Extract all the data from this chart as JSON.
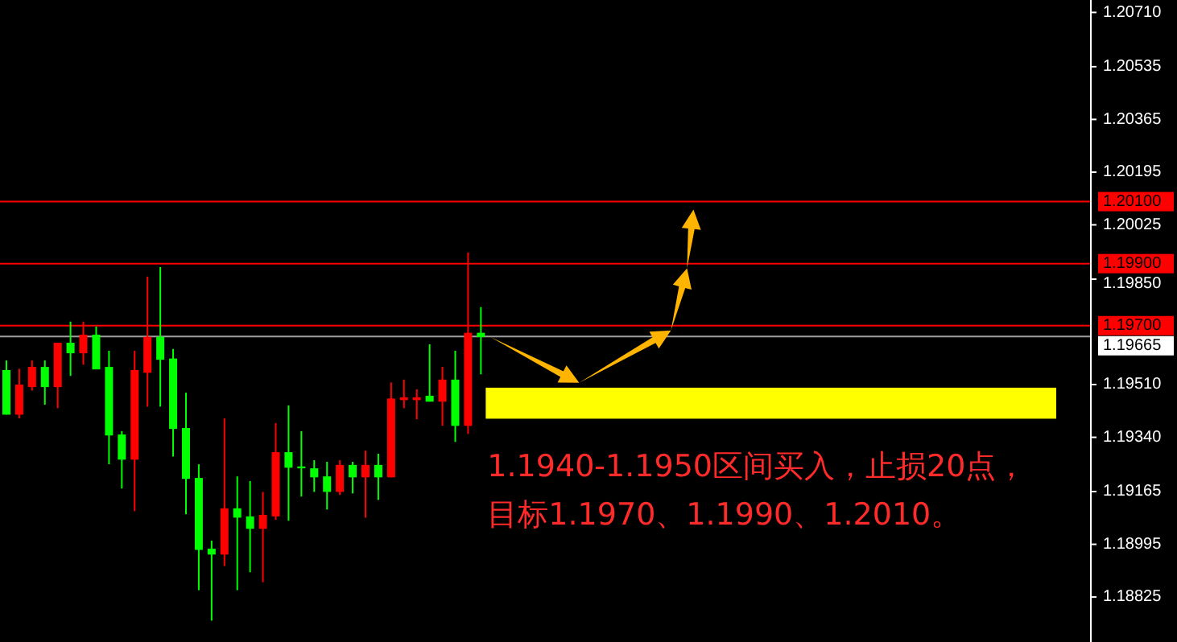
{
  "chart_data": {
    "type": "candlestick",
    "categories": [
      null,
      null,
      null,
      null,
      null,
      null,
      null,
      null,
      null,
      null,
      null,
      null,
      null,
      null,
      null,
      null,
      null,
      null,
      null,
      null,
      null,
      null,
      null,
      null,
      null,
      null,
      null,
      null,
      null,
      null,
      null,
      null,
      null,
      null,
      null,
      null,
      null,
      null,
      null,
      null,
      null,
      null,
      null,
      null,
      null,
      null,
      null,
      null,
      null,
      null,
      null,
      null,
      null,
      null,
      null,
      null,
      null,
      null,
      null,
      null,
      null,
      null,
      null,
      null,
      null,
      null,
      null,
      null,
      null,
      null,
      null,
      null,
      null,
      null,
      null,
      null,
      null,
      null,
      null,
      null,
      null,
      null,
      null,
      null,
      null
    ],
    "ohlc": [
      [
        1.19557,
        1.19588,
        1.19413,
        1.19413
      ],
      [
        1.19413,
        1.19561,
        1.19401,
        1.1951
      ],
      [
        1.19502,
        1.19588,
        1.19491,
        1.19567
      ],
      [
        1.19567,
        1.19588,
        1.19445,
        1.19502
      ],
      [
        1.19502,
        1.19645,
        1.19434,
        1.19645
      ],
      [
        1.19645,
        1.19713,
        1.19538,
        1.19611
      ],
      [
        1.19611,
        1.19713,
        1.19574,
        1.19671
      ],
      [
        1.19671,
        1.19697,
        1.19559,
        1.19559
      ],
      [
        1.19567,
        1.19619,
        1.19253,
        1.19346
      ],
      [
        1.19349,
        1.1936,
        1.19175,
        1.19268
      ],
      [
        1.19268,
        1.19619,
        1.19102,
        1.19557
      ],
      [
        1.19548,
        1.19858,
        1.19439,
        1.19664
      ],
      [
        1.19664,
        1.19889,
        1.19439,
        1.1959
      ],
      [
        1.19594,
        1.19625,
        1.19278,
        1.19367
      ],
      [
        1.1937,
        1.19484,
        1.19092,
        1.19206
      ],
      [
        1.19209,
        1.19253,
        1.18847,
        1.18977
      ],
      [
        1.18981,
        1.19007,
        1.18749,
        1.18962
      ],
      [
        1.18962,
        1.19401,
        1.18925,
        1.19111
      ],
      [
        1.19111,
        1.19214,
        1.18847,
        1.19081
      ],
      [
        1.19085,
        1.19199,
        1.18905,
        1.19045
      ],
      [
        1.19045,
        1.19164,
        1.18873,
        1.1909
      ],
      [
        1.19085,
        1.19386,
        1.19074,
        1.19292
      ],
      [
        1.19292,
        1.19443,
        1.19071,
        1.19242
      ],
      [
        1.19246,
        1.1936,
        1.19149,
        1.1924
      ],
      [
        1.1924,
        1.19266,
        1.19164,
        1.19211
      ],
      [
        1.19214,
        1.19261,
        1.19107,
        1.19164
      ],
      [
        1.19164,
        1.19266,
        1.19154,
        1.19251
      ],
      [
        1.19251,
        1.19261,
        1.19159,
        1.19211
      ],
      [
        1.19211,
        1.19297,
        1.19081,
        1.19251
      ],
      [
        1.19251,
        1.19287,
        1.19138,
        1.19211
      ],
      [
        1.19211,
        1.19517,
        1.19211,
        1.19465
      ],
      [
        1.1946,
        1.19526,
        1.19434,
        1.19469
      ],
      [
        1.1946,
        1.19495,
        1.19398,
        1.19469
      ],
      [
        1.19474,
        1.1964,
        1.19455,
        1.19455
      ],
      [
        1.19455,
        1.19567,
        1.19377,
        1.19526
      ],
      [
        1.19526,
        1.19619,
        1.19325,
        1.19377
      ],
      [
        1.19377,
        1.19936,
        1.19351,
        1.19677
      ],
      [
        1.19677,
        1.1976,
        1.19543,
        1.19663
      ],
      null,
      null,
      null,
      null,
      null,
      null,
      null,
      null,
      null,
      null,
      null,
      null,
      null,
      null,
      null,
      null,
      null,
      null,
      null,
      null,
      null,
      null,
      null,
      null,
      null,
      null,
      null,
      null,
      null,
      null,
      null,
      null,
      null,
      null,
      null,
      null,
      null,
      null,
      null,
      null,
      null,
      null,
      null,
      null,
      null,
      null,
      null
    ],
    "colors": [
      "#00ff00",
      "#ff0000",
      "#ff0000",
      "#00ff00",
      "#ff0000",
      "#00ff00",
      "#ff0000",
      "#00ff00",
      "#00ff00",
      "#00ff00",
      "#ff0000",
      "#ff0000",
      "#00ff00",
      "#00ff00",
      "#00ff00",
      "#00ff00",
      "#00ff00",
      "#ff0000",
      "#00ff00",
      "#00ff00",
      "#ff0000",
      "#ff0000",
      "#00ff00",
      "#00ff00",
      "#00ff00",
      "#00ff00",
      "#ff0000",
      "#00ff00",
      "#ff0000",
      "#00ff00",
      "#ff0000",
      "#ff0000",
      "#ff0000",
      "#00ff00",
      "#ff0000",
      "#00ff00",
      "#ff0000",
      "#00ff00",
      null,
      null,
      null,
      null,
      null,
      null,
      null,
      null,
      null,
      null,
      null,
      null,
      null,
      null,
      null,
      null,
      null,
      null,
      null,
      null,
      null,
      null,
      null,
      null,
      null,
      null,
      null,
      null,
      null,
      null,
      null,
      null,
      null,
      null,
      null,
      null,
      null,
      null,
      null,
      null,
      null,
      null,
      null,
      null,
      null,
      null,
      null
    ],
    "ylim": [
      1.1868,
      1.2075
    ],
    "yticks": [
      {
        "value": 1.2071,
        "label": "1.20710"
      },
      {
        "value": 1.20535,
        "label": "1.20535"
      },
      {
        "value": 1.20365,
        "label": "1.20365"
      },
      {
        "value": 1.20195,
        "label": "1.20195"
      },
      {
        "value": 1.20025,
        "label": "1.20025"
      },
      {
        "value": 1.1985,
        "label": "1.19850"
      },
      {
        "value": 1.1951,
        "label": "1.19510"
      },
      {
        "value": 1.1934,
        "label": "1.19340"
      },
      {
        "value": 1.19165,
        "label": "1.19165"
      },
      {
        "value": 1.18995,
        "label": "1.18995"
      },
      {
        "value": 1.18825,
        "label": "1.18825"
      }
    ],
    "ref_lines": [
      {
        "axis": "y",
        "value": 1.201,
        "label": "1.20100",
        "color": "#ff0000"
      },
      {
        "axis": "y",
        "value": 1.199,
        "label": "1.19900",
        "color": "#ff0000"
      },
      {
        "axis": "y",
        "value": 1.197,
        "label": "1.19700",
        "color": "#ff0000"
      },
      {
        "axis": "y",
        "value": 1.19665,
        "label": "1.19665",
        "color": "#a0a0a0"
      }
    ],
    "bands": [
      {
        "axis": "y",
        "from": 1.194,
        "to": 1.195,
        "color": "#ffff00"
      }
    ],
    "annotations": [
      "1.1940-1.1950区间买入，止损20点，",
      "目标1.1970、1.1990、1.2010。"
    ]
  }
}
